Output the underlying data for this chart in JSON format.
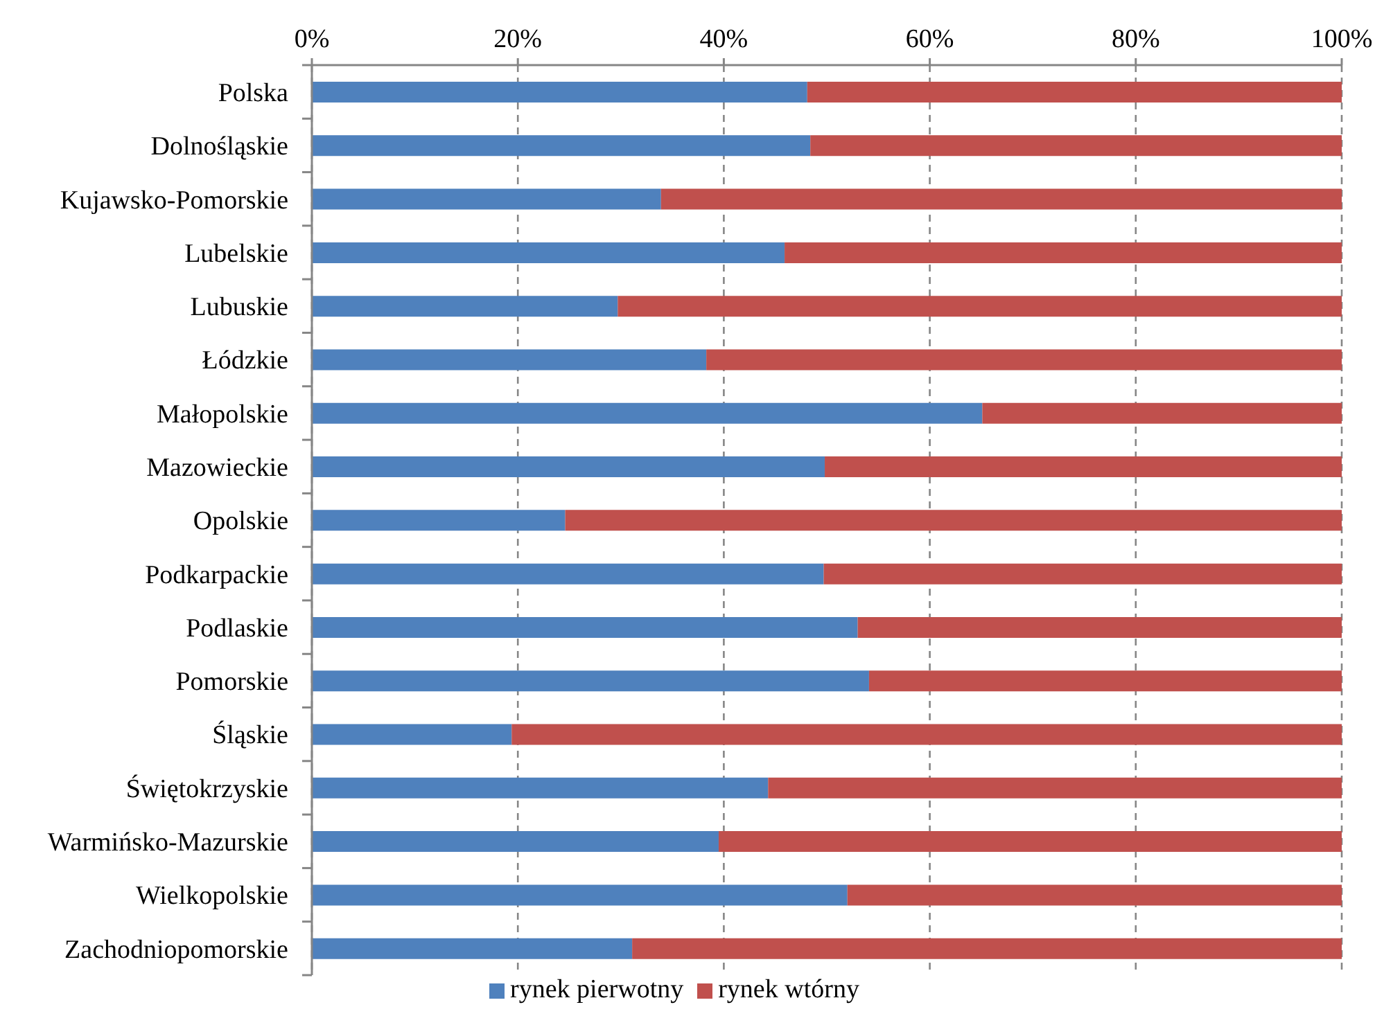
{
  "chart_data": {
    "type": "bar",
    "orientation": "horizontal",
    "stacked": true,
    "categories": [
      "Polska",
      "Dolnośląskie",
      "Kujawsko-Pomorskie",
      "Lubelskie",
      "Lubuskie",
      "Łódzkie",
      "Małopolskie",
      "Mazowieckie",
      "Opolskie",
      "Podkarpackie",
      "Podlaskie",
      "Pomorskie",
      "Śląskie",
      "Świętokrzyskie",
      "Warmińsko-Mazurskie",
      "Wielkopolskie",
      "Zachodniopomorskie"
    ],
    "series": [
      {
        "name": "rynek pierwotny",
        "color": "#4f81bd",
        "values": [
          48.1,
          48.4,
          33.9,
          45.9,
          29.7,
          38.3,
          65.1,
          49.8,
          24.6,
          49.7,
          53.0,
          54.1,
          19.4,
          44.3,
          39.5,
          52.0,
          31.1
        ]
      },
      {
        "name": "rynek wtórny",
        "color": "#c0504d",
        "values": [
          51.9,
          51.6,
          66.1,
          54.1,
          70.3,
          61.7,
          34.9,
          50.2,
          75.4,
          50.3,
          47.0,
          45.9,
          80.6,
          55.7,
          60.5,
          48.0,
          68.9
        ]
      }
    ],
    "xlim": [
      0,
      100
    ],
    "xticks": [
      {
        "value": 0,
        "label": "0%"
      },
      {
        "value": 20,
        "label": "20%"
      },
      {
        "value": 40,
        "label": "40%"
      },
      {
        "value": 60,
        "label": "60%"
      },
      {
        "value": 80,
        "label": "80%"
      },
      {
        "value": 100,
        "label": "100%"
      }
    ],
    "grid": "x",
    "legend": "bottom"
  }
}
